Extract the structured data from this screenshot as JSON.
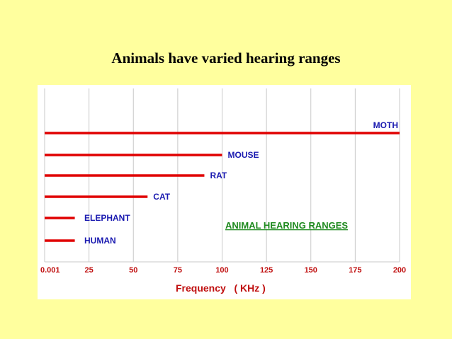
{
  "slide": {
    "title": "Animals have varied hearing ranges"
  },
  "chart_data": {
    "type": "bar",
    "orientation": "horizontal",
    "title": "ANIMAL  HEARING  RANGES",
    "xlabel": "Frequency   ( KHz )",
    "ylabel": "",
    "x_ticks": [
      0.001,
      25,
      50,
      75,
      100,
      125,
      150,
      175,
      200
    ],
    "x_tick_labels": [
      "0.001",
      "25",
      "50",
      "75",
      "100",
      "125",
      "150",
      "175",
      "200"
    ],
    "xlim": [
      0,
      200
    ],
    "grid": "vertical",
    "bars": [
      {
        "label": "MOTH",
        "min": 0.001,
        "max": 200
      },
      {
        "label": "MOUSE",
        "min": 0.001,
        "max": 100
      },
      {
        "label": "RAT",
        "min": 0.001,
        "max": 90
      },
      {
        "label": "CAT",
        "min": 0.001,
        "max": 58
      },
      {
        "label": "ELEPHANT",
        "min": 0.001,
        "max": 17
      },
      {
        "label": "HUMAN",
        "min": 0.001,
        "max": 17
      }
    ],
    "colors": {
      "bar": "#E00000",
      "label": "#1A1AB0",
      "title": "#1F8A1F",
      "axis_text": "#C01010",
      "grid": "#C8C8C8",
      "background": "#FFFF9E"
    }
  }
}
